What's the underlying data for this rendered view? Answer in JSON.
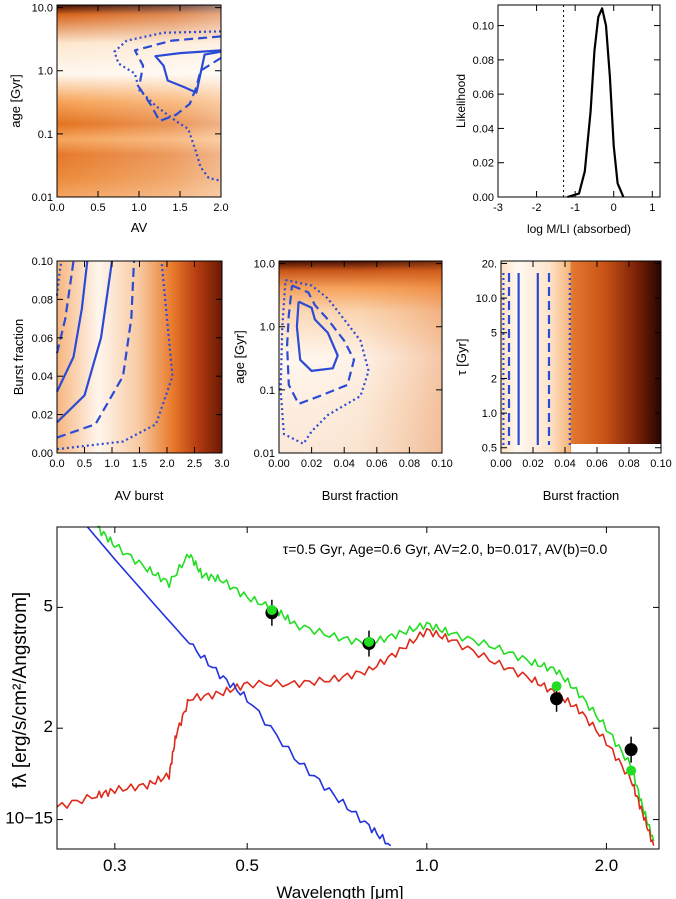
{
  "colors": {
    "map_light": "#fff6ec",
    "map_mid": "#f08a2a",
    "map_dark": "#2a0600",
    "contour": "#2b4bd6",
    "total": "#22dd22",
    "old": "#dd2a1a",
    "young": "#2233dd",
    "obs": "#000000",
    "model_pt": "#22dd22"
  },
  "chart_data": [
    {
      "type": "heatmap",
      "id": "p1",
      "xlabel": "AV",
      "ylabel": "age [Gyr]",
      "xlim": [
        0.0,
        2.0
      ],
      "yscale": "log",
      "ylim": [
        0.01,
        11.0
      ],
      "xticks": [
        "0.0",
        "0.5",
        "1.0",
        "1.5",
        "2.0"
      ],
      "yticks": [
        "0.01",
        "0.1",
        "1.0",
        "10.0"
      ],
      "contours": [
        {
          "style": "solid",
          "points": [
            [
              2.0,
              2.1
            ],
            [
              1.5,
              1.9
            ],
            [
              1.2,
              1.7
            ],
            [
              1.3,
              1.2
            ],
            [
              1.35,
              0.7
            ],
            [
              1.55,
              0.55
            ],
            [
              1.7,
              0.45
            ],
            [
              1.75,
              0.9
            ],
            [
              1.8,
              1.8
            ],
            [
              2.0,
              2.0
            ]
          ]
        },
        {
          "style": "dashed",
          "points": [
            [
              2.0,
              3.5
            ],
            [
              1.4,
              3.0
            ],
            [
              0.95,
              2.1
            ],
            [
              1.05,
              1.2
            ],
            [
              1.0,
              0.55
            ],
            [
              1.15,
              0.28
            ],
            [
              1.25,
              0.16
            ],
            [
              1.45,
              0.2
            ],
            [
              1.62,
              0.3
            ],
            [
              1.7,
              0.55
            ],
            [
              1.75,
              1.0
            ],
            [
              2.0,
              1.6
            ]
          ]
        },
        {
          "style": "dotted",
          "points": [
            [
              2.0,
              4.2
            ],
            [
              1.3,
              4.0
            ],
            [
              0.85,
              3.0
            ],
            [
              0.7,
              2.0
            ],
            [
              0.75,
              1.3
            ],
            [
              0.95,
              0.9
            ],
            [
              1.0,
              0.5
            ],
            [
              1.2,
              0.28
            ],
            [
              1.45,
              0.16
            ],
            [
              1.6,
              0.12
            ],
            [
              1.7,
              0.05
            ],
            [
              1.75,
              0.03
            ],
            [
              1.85,
              0.02
            ],
            [
              2.0,
              0.018
            ]
          ]
        }
      ]
    },
    {
      "type": "line",
      "id": "p2",
      "xlabel": "log M/LI (absorbed)",
      "ylabel": "Likelihood",
      "xlim": [
        -3,
        1.2
      ],
      "ylim": [
        0.0,
        0.112
      ],
      "xticks": [
        "-3",
        "-2",
        "-1",
        "0",
        "1"
      ],
      "yticks": [
        "0.00",
        "0.02",
        "0.04",
        "0.06",
        "0.08",
        "0.10"
      ],
      "vline_x": -1.3,
      "x": [
        -1.2,
        -0.9,
        -0.75,
        -0.6,
        -0.5,
        -0.4,
        -0.3,
        -0.2,
        -0.1,
        0.0,
        0.1,
        0.25
      ],
      "y": [
        0.0,
        0.002,
        0.015,
        0.05,
        0.085,
        0.105,
        0.11,
        0.1,
        0.07,
        0.03,
        0.008,
        0.0
      ]
    },
    {
      "type": "heatmap",
      "id": "p3",
      "xlabel": "AV burst",
      "ylabel": "Burst fraction",
      "xlim": [
        0.0,
        3.0
      ],
      "ylim": [
        0.0,
        0.1
      ],
      "xticks": [
        "0.0",
        "0.5",
        "1.0",
        "1.5",
        "2.0",
        "2.5",
        "3.0"
      ],
      "yticks": [
        "0.00",
        "0.02",
        "0.04",
        "0.06",
        "0.08",
        "0.10"
      ],
      "contours": [
        {
          "style": "solid",
          "points": [
            [
              0.0,
              0.016
            ],
            [
              0.5,
              0.03
            ],
            [
              0.8,
              0.06
            ],
            [
              1.0,
              0.1
            ]
          ]
        },
        {
          "style": "solid",
          "points": [
            [
              0.0,
              0.032
            ],
            [
              0.3,
              0.05
            ],
            [
              0.45,
              0.075
            ],
            [
              0.55,
              0.1
            ]
          ]
        },
        {
          "style": "dashed",
          "points": [
            [
              0.0,
              0.008
            ],
            [
              0.7,
              0.015
            ],
            [
              1.2,
              0.04
            ],
            [
              1.35,
              0.07
            ],
            [
              1.4,
              0.1
            ]
          ]
        },
        {
          "style": "dashed",
          "points": [
            [
              0.0,
              0.052
            ],
            [
              0.15,
              0.07
            ],
            [
              0.25,
              0.09
            ],
            [
              0.3,
              0.1
            ]
          ]
        },
        {
          "style": "dotted",
          "points": [
            [
              0.0,
              0.002
            ],
            [
              1.2,
              0.006
            ],
            [
              1.8,
              0.015
            ],
            [
              2.1,
              0.04
            ],
            [
              2.0,
              0.07
            ],
            [
              1.9,
              0.1
            ]
          ]
        },
        {
          "style": "dotted",
          "points": [
            [
              0.0,
              0.082
            ],
            [
              0.05,
              0.095
            ],
            [
              0.08,
              0.1
            ]
          ]
        }
      ]
    },
    {
      "type": "heatmap",
      "id": "p4",
      "xlabel": "Burst fraction",
      "ylabel": "age [Gyr]",
      "xlim": [
        0.0,
        0.1
      ],
      "yscale": "log",
      "ylim": [
        0.01,
        11.0
      ],
      "xticks": [
        "0.00",
        "0.02",
        "0.04",
        "0.06",
        "0.08",
        "0.10"
      ],
      "yticks": [
        "0.01",
        "0.1",
        "1.0",
        "10.0"
      ],
      "contours": [
        {
          "style": "solid",
          "points": [
            [
              0.012,
              2.5
            ],
            [
              0.02,
              2.0
            ],
            [
              0.022,
              1.3
            ],
            [
              0.03,
              0.8
            ],
            [
              0.036,
              0.35
            ],
            [
              0.033,
              0.22
            ],
            [
              0.02,
              0.2
            ],
            [
              0.013,
              0.3
            ],
            [
              0.011,
              1.0
            ],
            [
              0.012,
              2.5
            ]
          ]
        },
        {
          "style": "dashed",
          "points": [
            [
              0.008,
              4.5
            ],
            [
              0.018,
              3.5
            ],
            [
              0.022,
              2.2
            ],
            [
              0.03,
              1.3
            ],
            [
              0.04,
              0.6
            ],
            [
              0.046,
              0.3
            ],
            [
              0.042,
              0.12
            ],
            [
              0.025,
              0.08
            ],
            [
              0.012,
              0.06
            ],
            [
              0.006,
              0.12
            ],
            [
              0.005,
              0.5
            ],
            [
              0.006,
              1.5
            ],
            [
              0.008,
              4.5
            ]
          ]
        },
        {
          "style": "dotted",
          "points": [
            [
              0.004,
              5.5
            ],
            [
              0.02,
              4.5
            ],
            [
              0.03,
              2.8
            ],
            [
              0.04,
              1.3
            ],
            [
              0.05,
              0.6
            ],
            [
              0.055,
              0.2
            ],
            [
              0.05,
              0.08
            ],
            [
              0.03,
              0.04
            ],
            [
              0.02,
              0.022
            ],
            [
              0.015,
              0.014
            ],
            [
              0.003,
              0.02
            ],
            [
              0.001,
              0.1
            ],
            [
              0.002,
              1.0
            ],
            [
              0.004,
              5.5
            ]
          ]
        }
      ]
    },
    {
      "type": "heatmap",
      "id": "p5",
      "xlabel": "Burst fraction",
      "ylabel": "τ [Gyr]",
      "xlim": [
        0.0,
        0.1
      ],
      "yscale": "log",
      "ylim": [
        0.45,
        21.0
      ],
      "xticks": [
        "0.00",
        "0.02",
        "0.04",
        "0.06",
        "0.08",
        "0.10"
      ],
      "yticks": [
        "0.5",
        "1.0",
        "2",
        "5",
        "10.0",
        "20."
      ],
      "vlines": [
        {
          "x": 0.011,
          "style": "solid"
        },
        {
          "x": 0.023,
          "style": "solid"
        },
        {
          "x": 0.005,
          "style": "dashed"
        },
        {
          "x": 0.03,
          "style": "dashed"
        },
        {
          "x": 0.0015,
          "style": "dotted"
        },
        {
          "x": 0.043,
          "style": "dotted"
        }
      ]
    },
    {
      "type": "line",
      "id": "sed",
      "xlabel": "Wavelength [μm]",
      "ylabel": "fλ [erg/s/cm²/Angstrom]",
      "xscale": "log",
      "yscale": "log",
      "xlim": [
        0.24,
        2.45
      ],
      "ylim": [
        0.8,
        9.2
      ],
      "xticks": [
        "0.3",
        "0.5",
        "1.0",
        "2.0"
      ],
      "yticks": [
        "10−15",
        "2",
        "5"
      ],
      "annotation": "τ=0.5 Gyr, Age=0.6 Gyr, AV=2.0, b=0.017, AV(b)=0.0",
      "series": [
        {
          "name": "total",
          "x": [
            0.28,
            0.3,
            0.34,
            0.37,
            0.4,
            0.42,
            0.45,
            0.5,
            0.56,
            0.6,
            0.7,
            0.8,
            0.9,
            1.0,
            1.1,
            1.3,
            1.5,
            1.65,
            1.8,
            2.0,
            2.2,
            2.3,
            2.4
          ],
          "y": [
            9.2,
            8.0,
            6.7,
            6.0,
            7.5,
            6.4,
            6.2,
            5.4,
            4.9,
            4.4,
            4.0,
            3.8,
            4.1,
            4.4,
            4.1,
            3.7,
            3.3,
            3.1,
            2.6,
            2.0,
            1.5,
            1.1,
            0.85
          ]
        },
        {
          "name": "old",
          "x": [
            0.24,
            0.28,
            0.3,
            0.34,
            0.37,
            0.38,
            0.4,
            0.45,
            0.5,
            0.6,
            0.7,
            0.8,
            0.9,
            1.0,
            1.1,
            1.3,
            1.5,
            1.65,
            1.8,
            2.0,
            2.2,
            2.3,
            2.4
          ],
          "y": [
            1.1,
            1.2,
            1.25,
            1.3,
            1.4,
            1.9,
            2.5,
            2.6,
            2.8,
            2.8,
            2.9,
            3.1,
            3.6,
            4.2,
            3.9,
            3.3,
            2.9,
            2.6,
            2.3,
            1.8,
            1.35,
            1.05,
            0.82
          ]
        },
        {
          "name": "young",
          "x": [
            0.27,
            0.3,
            0.35,
            0.4,
            0.45,
            0.5,
            0.6,
            0.7,
            0.8,
            0.87
          ],
          "y": [
            9.2,
            7.2,
            5.1,
            3.8,
            3.0,
            2.5,
            1.6,
            1.2,
            0.95,
            0.82
          ]
        }
      ],
      "observations": [
        {
          "x": 0.55,
          "y": 4.8
        },
        {
          "x": 0.8,
          "y": 3.8
        },
        {
          "x": 1.65,
          "y": 2.5
        },
        {
          "x": 2.2,
          "y": 1.7
        }
      ],
      "model_points": [
        {
          "x": 0.55,
          "y": 4.9
        },
        {
          "x": 0.8,
          "y": 3.85
        },
        {
          "x": 1.65,
          "y": 2.75
        },
        {
          "x": 2.2,
          "y": 1.45
        }
      ]
    }
  ]
}
